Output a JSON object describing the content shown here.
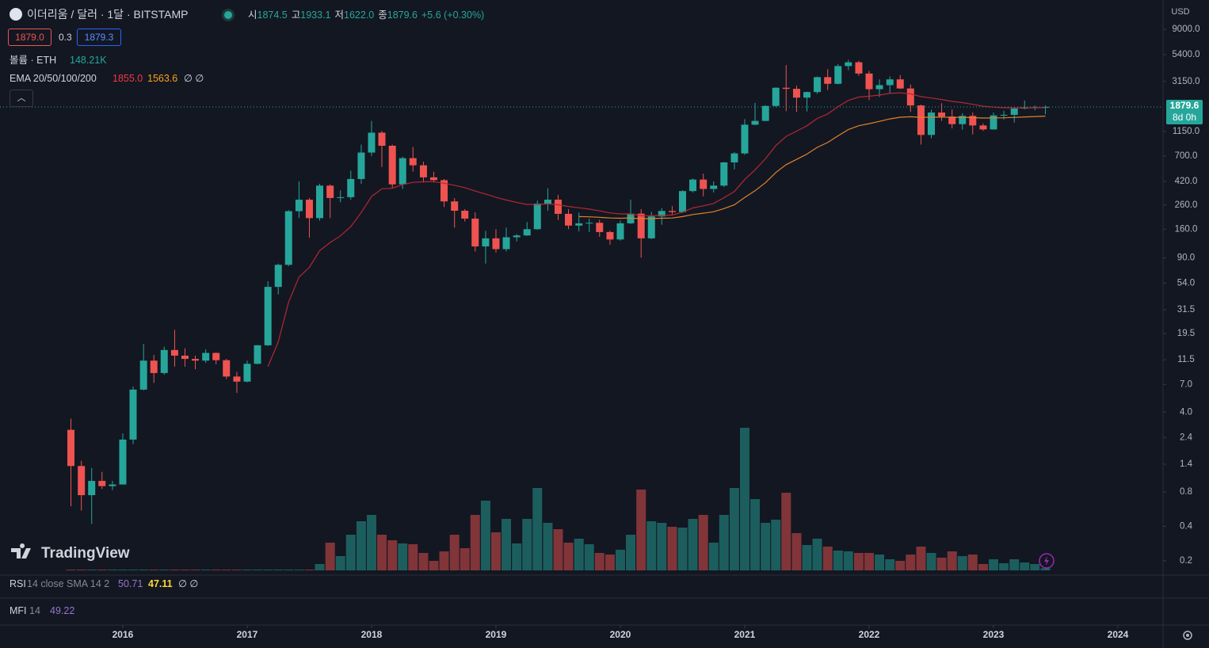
{
  "chart_data": {
    "type": "candlestick",
    "title": "이더리움 / 달러 · 1달 · BITSTAMP",
    "ohlc_legend": [
      {
        "label": "시",
        "value": "1874.5"
      },
      {
        "label": "고",
        "value": "1933.1"
      },
      {
        "label": "저",
        "value": "1622.0"
      },
      {
        "label": "종",
        "value": "1879.6"
      }
    ],
    "change": "+5.6 (+0.30%)",
    "log_scale": true,
    "up_color": "#26a69a",
    "down_color": "#ef5350",
    "x": [
      2015.583,
      2015.667,
      2015.75,
      2015.833,
      2015.917,
      2016,
      2016.083,
      2016.167,
      2016.25,
      2016.333,
      2016.417,
      2016.5,
      2016.583,
      2016.667,
      2016.75,
      2016.833,
      2016.917,
      2017,
      2017.083,
      2017.167,
      2017.25,
      2017.333,
      2017.417,
      2017.5,
      2017.583,
      2017.667,
      2017.75,
      2017.833,
      2017.917,
      2018,
      2018.083,
      2018.167,
      2018.25,
      2018.333,
      2018.417,
      2018.5,
      2018.583,
      2018.667,
      2018.75,
      2018.833,
      2018.917,
      2019,
      2019.083,
      2019.167,
      2019.25,
      2019.333,
      2019.417,
      2019.5,
      2019.583,
      2019.667,
      2019.75,
      2019.833,
      2019.917,
      2020,
      2020.083,
      2020.167,
      2020.25,
      2020.333,
      2020.417,
      2020.5,
      2020.583,
      2020.667,
      2020.75,
      2020.833,
      2020.917,
      2021,
      2021.083,
      2021.167,
      2021.25,
      2021.333,
      2021.417,
      2021.5,
      2021.583,
      2021.667,
      2021.75,
      2021.833,
      2021.917,
      2022,
      2022.083,
      2022.167,
      2022.25,
      2022.333,
      2022.417,
      2022.5,
      2022.583,
      2022.667,
      2022.75,
      2022.833,
      2022.917,
      2023,
      2023.083,
      2023.167,
      2023.25,
      2023.333,
      2023.417
    ],
    "open": [
      2.8,
      1.35,
      0.75,
      1.0,
      0.9,
      0.93,
      2.3,
      6.3,
      11.3,
      8.8,
      14,
      12.5,
      11.7,
      11.3,
      13.2,
      11.4,
      8.2,
      7.4,
      10.6,
      15.4,
      50,
      78,
      230,
      290,
      200,
      385,
      300,
      305,
      440,
      750,
      1120,
      860,
      395,
      670,
      580,
      455,
      430,
      280,
      232,
      198,
      113,
      133,
      107,
      136,
      141,
      160,
      268,
      290,
      218,
      172,
      180,
      182,
      151,
      130,
      180,
      219,
      133,
      207,
      231,
      226,
      345,
      435,
      360,
      385,
      615,
      737,
      1315,
      1420,
      1920,
      2770,
      2710,
      2270,
      2540,
      3430,
      3000,
      4290,
      4630,
      3690,
      2690,
      2920,
      3280,
      2730,
      1940,
      1070,
      1680,
      1550,
      1330,
      1570,
      1295,
      1196,
      1585,
      1605,
      1820,
      1870,
      1874.5
    ],
    "high": [
      3.5,
      1.5,
      1.3,
      1.2,
      1.0,
      2.6,
      6.7,
      15.8,
      12.7,
      15,
      21,
      14.5,
      12.5,
      14.2,
      13.3,
      11.7,
      9,
      11.3,
      15.5,
      56,
      80,
      235,
      420,
      300,
      400,
      395,
      350,
      520,
      880,
      1420,
      1160,
      880,
      690,
      840,
      625,
      510,
      440,
      300,
      240,
      225,
      155,
      160,
      165,
      145,
      185,
      285,
      365,
      320,
      240,
      224,
      198,
      194,
      155,
      190,
      290,
      240,
      227,
      245,
      255,
      350,
      445,
      490,
      420,
      620,
      760,
      1470,
      2040,
      1945,
      2800,
      4380,
      2890,
      2560,
      3470,
      4030,
      4460,
      4870,
      4780,
      3890,
      3280,
      3480,
      3580,
      2960,
      1970,
      1780,
      2030,
      1790,
      1660,
      1680,
      1350,
      1680,
      1740,
      1850,
      2140,
      1930,
      1933.1
    ],
    "low": [
      0.6,
      0.55,
      0.42,
      0.85,
      0.83,
      0.93,
      2.1,
      6.2,
      7.2,
      8.5,
      10,
      10,
      9.5,
      10.8,
      10.5,
      7.8,
      5.9,
      7.3,
      10.5,
      15.2,
      43,
      76,
      200,
      135,
      190,
      200,
      275,
      290,
      400,
      700,
      560,
      370,
      360,
      510,
      410,
      410,
      250,
      165,
      187,
      102,
      80,
      100,
      102,
      125,
      140,
      158,
      232,
      192,
      160,
      153,
      151,
      137,
      117,
      127,
      178,
      90,
      131,
      175,
      215,
      222,
      335,
      310,
      335,
      375,
      535,
      715,
      1300,
      1410,
      1880,
      1730,
      1700,
      1720,
      2450,
      2650,
      2970,
      3950,
      3520,
      2160,
      2300,
      2450,
      2700,
      1700,
      880,
      1000,
      1420,
      1220,
      1190,
      1080,
      1160,
      1190,
      1460,
      1370,
      1790,
      1760,
      1622
    ],
    "close": [
      1.35,
      0.75,
      1.0,
      0.9,
      0.93,
      2.3,
      6.3,
      11.3,
      8.8,
      14,
      12.5,
      11.7,
      11.3,
      13.2,
      11.4,
      8.2,
      7.4,
      10.6,
      15.4,
      50,
      78,
      230,
      290,
      200,
      385,
      300,
      305,
      440,
      750,
      1120,
      860,
      395,
      670,
      580,
      455,
      430,
      280,
      232,
      198,
      113,
      133,
      107,
      136,
      141,
      160,
      268,
      290,
      218,
      172,
      180,
      182,
      151,
      130,
      180,
      219,
      133,
      207,
      231,
      226,
      345,
      435,
      360,
      385,
      615,
      737,
      1315,
      1420,
      1920,
      2770,
      2710,
      2270,
      2540,
      3430,
      3000,
      4290,
      4630,
      3690,
      2690,
      2920,
      3280,
      2730,
      1940,
      1070,
      1680,
      1550,
      1330,
      1570,
      1295,
      1196,
      1585,
      1605,
      1820,
      1870,
      1874.5,
      1879.6
    ],
    "volume_label": "볼륨 · ETH",
    "volume_value": "148.21K",
    "volume": [
      55000,
      55000,
      55000,
      55000,
      55000,
      55000,
      55000,
      55000,
      55000,
      55000,
      55000,
      55000,
      55000,
      55000,
      55000,
      55000,
      55000,
      55000,
      55000,
      55000,
      55000,
      55000,
      55000,
      55000,
      440000,
      1925000,
      990000,
      2475000,
      3410000,
      3850000,
      2475000,
      2090000,
      1870000,
      1815000,
      1210000,
      660000,
      1320000,
      2475000,
      1540000,
      3850000,
      4840000,
      2640000,
      3575000,
      1870000,
      3575000,
      5720000,
      3300000,
      2860000,
      1925000,
      2200000,
      1815000,
      1210000,
      1100000,
      1430000,
      2475000,
      5610000,
      3410000,
      3300000,
      3025000,
      2970000,
      3575000,
      3850000,
      1925000,
      3850000,
      5720000,
      9900000,
      4950000,
      3300000,
      3520000,
      5390000,
      2585000,
      1760000,
      2200000,
      1650000,
      1375000,
      1320000,
      1210000,
      1210000,
      1100000,
      770000,
      660000,
      1100000,
      1650000,
      1210000,
      880000,
      1320000,
      990000,
      1100000,
      440000,
      770000,
      495000,
      770000,
      550000,
      440000,
      148210
    ],
    "ema_label": "EMA 20/50/100/200",
    "ema_legend": [
      "1855.0",
      "1563.6",
      "∅ ∅"
    ],
    "ema": [
      {
        "color": "#b22833",
        "values": [
          null,
          null,
          null,
          null,
          null,
          null,
          null,
          null,
          null,
          null,
          null,
          null,
          null,
          null,
          null,
          null,
          null,
          null,
          null,
          10.0,
          16.5,
          36.8,
          60.9,
          74.1,
          103.7,
          122.4,
          139.8,
          168.4,
          223.8,
          309.1,
          361.5,
          364.7,
          393.8,
          411.5,
          415.6,
          417.0,
          404.0,
          387.6,
          369.5,
          345.1,
          324.9,
          304.2,
          288.2,
          274.2,
          263.3,
          263.7,
          266.2,
          261.6,
          253.1,
          246.1,
          240.0,
          231.5,
          221.8,
          217.8,
          217.9,
          209.8,
          209.5,
          211.5,
          212.9,
          225.5,
          245.4,
          256.3,
          268.5,
          301.5,
          343.0,
          435.5,
          529.2,
          661.6,
          862.3,
          1038.2,
          1155.4,
          1287.2,
          1491.2,
          1634.8,
          1887.6,
          2148.6,
          2295.3,
          2332.9,
          2388.8,
          2473.7,
          2498.1,
          2445.0,
          2314.1,
          2253.7,
          2186.7,
          2105.1,
          2054.1,
          1981.8,
          1907.0,
          1876.3,
          1850.5,
          1847.6,
          1849.7,
          1852.1,
          1855.0
        ]
      },
      {
        "color": "#e0822a",
        "values": [
          null,
          null,
          null,
          null,
          null,
          null,
          null,
          null,
          null,
          null,
          null,
          null,
          null,
          null,
          null,
          null,
          null,
          null,
          null,
          null,
          null,
          null,
          null,
          null,
          null,
          null,
          null,
          null,
          null,
          null,
          null,
          null,
          null,
          null,
          null,
          null,
          null,
          null,
          null,
          null,
          null,
          null,
          null,
          null,
          null,
          null,
          null,
          null,
          null,
          206.3,
          205.3,
          203.2,
          200.3,
          199.5,
          200.3,
          197.7,
          198.1,
          199.4,
          200.4,
          206.1,
          215.1,
          220.8,
          227.2,
          242.4,
          261.8,
          303.1,
          346.9,
          408.6,
          501.2,
          587.8,
          653.7,
          727.6,
          833.5,
          918.4,
          1050.6,
          1190.9,
          1288.9,
          1343.8,
          1405.6,
          1479.1,
          1528.1,
          1544.3,
          1525.7,
          1531.7,
          1532.4,
          1524.5,
          1526.3,
          1517.2,
          1504.6,
          1507.8,
          1511.6,
          1523.7,
          1537.3,
          1550.5,
          1563.6
        ]
      }
    ],
    "ylim": [
      0.152,
      16250
    ],
    "yticks": [
      {
        "value": 9000,
        "label": "9000.0"
      },
      {
        "value": 5400,
        "label": "5400.0"
      },
      {
        "value": 3150,
        "label": "3150.0"
      },
      {
        "value": 1150,
        "label": "1150.0"
      },
      {
        "value": 700,
        "label": "700.0"
      },
      {
        "value": 420,
        "label": "420.0"
      },
      {
        "value": 260,
        "label": "260.0"
      },
      {
        "value": 160,
        "label": "160.0"
      },
      {
        "value": 90,
        "label": "90.0"
      },
      {
        "value": 54,
        "label": "54.0"
      },
      {
        "value": 31.5,
        "label": "31.5"
      },
      {
        "value": 19.5,
        "label": "19.5"
      },
      {
        "value": 11.5,
        "label": "11.5"
      },
      {
        "value": 7,
        "label": "7.0"
      },
      {
        "value": 4,
        "label": "4.0"
      },
      {
        "value": 2.4,
        "label": "2.4"
      },
      {
        "value": 1.4,
        "label": "1.4"
      },
      {
        "value": 0.8,
        "label": "0.8"
      },
      {
        "value": 0.4,
        "label": "0.4"
      },
      {
        "value": 0.2,
        "label": "0.2"
      }
    ],
    "xlim": [
      2015.013,
      2024.363
    ],
    "xticks": [
      2016,
      2017,
      2018,
      2019,
      2020,
      2021,
      2022,
      2023,
      2024
    ]
  },
  "ui": {
    "currency": "USD",
    "bid": "1879.0",
    "spread": "0.3",
    "ask": "1879.3",
    "countdown": "8d 0h",
    "logo": "TradingView",
    "rsi": {
      "name": "RSI",
      "params": "14 close SMA 14 2",
      "value": "50.71",
      "sma": "47.11",
      "extra": "∅ ∅"
    },
    "mfi": {
      "name": "MFI",
      "params": "14",
      "value": "49.22"
    }
  }
}
